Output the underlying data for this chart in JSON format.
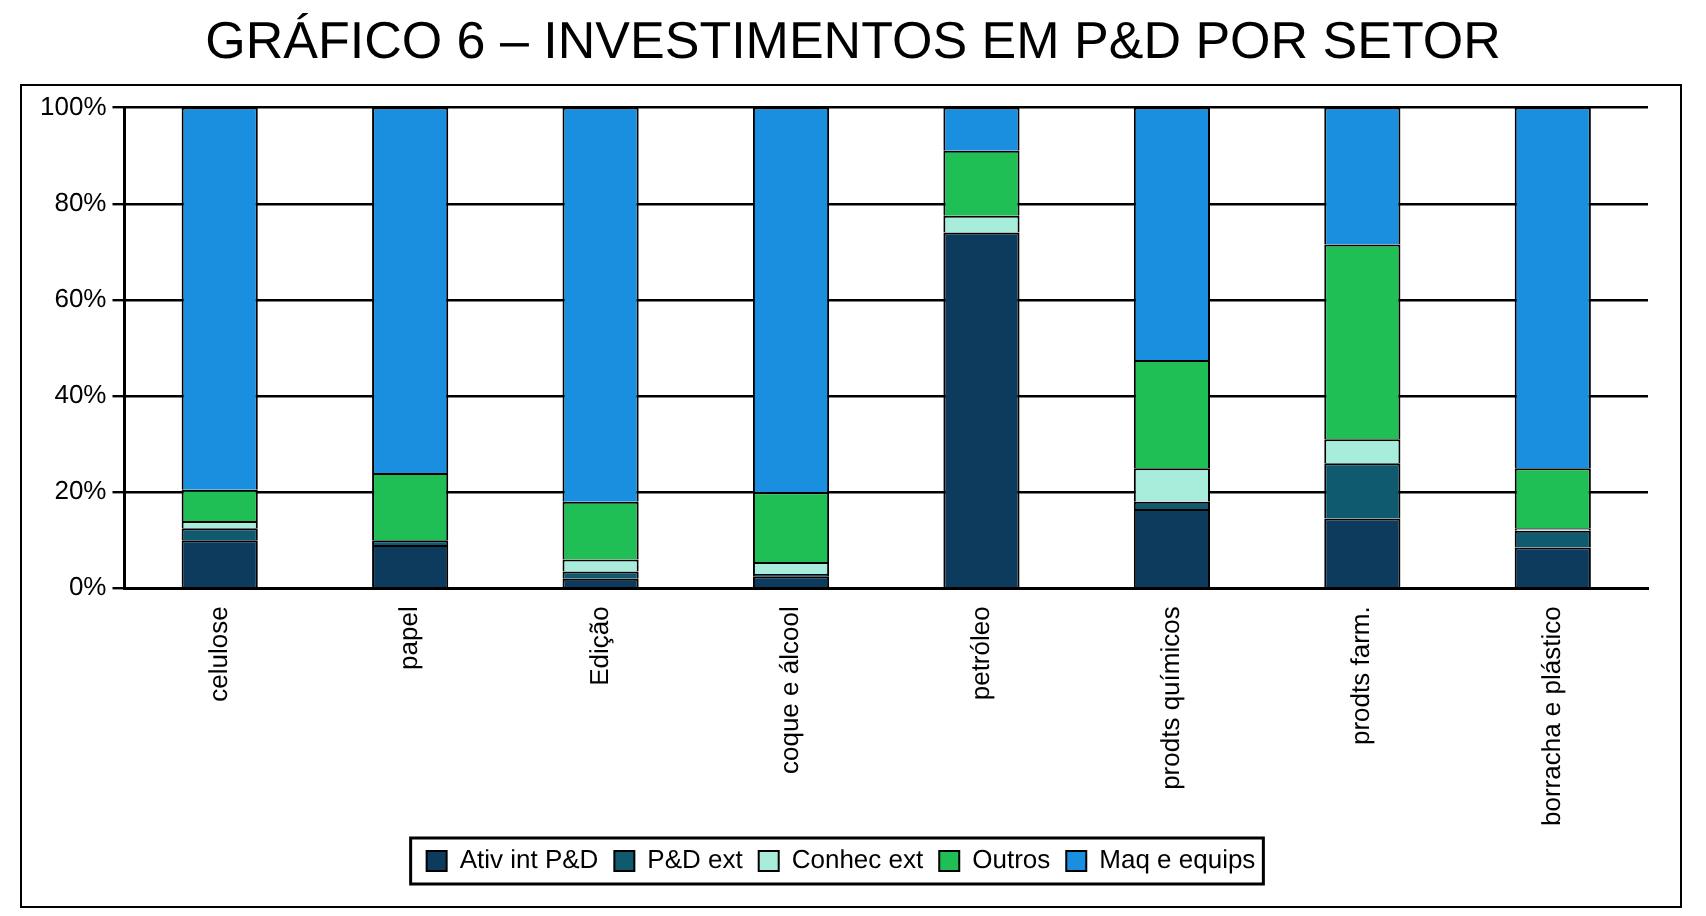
{
  "chart_data": {
    "type": "bar",
    "title": "GRÁFICO 6 – INVESTIMENTOS EM P&D POR SETOR",
    "stacked": true,
    "categories": [
      "celulose",
      "papel",
      "Edição",
      "coque e álcool",
      "petróleo",
      "prodts químicos",
      "prodts farm.",
      "borracha e plástico"
    ],
    "series": [
      {
        "name": "Ativ int P&D",
        "color": "#0d3b5e",
        "values": [
          10,
          9,
          2,
          2.5,
          74,
          16.5,
          14.5,
          8.5
        ]
      },
      {
        "name": "P&D ext",
        "color": "#0f5a6e",
        "values": [
          2.5,
          1,
          1.5,
          0.5,
          0,
          1.5,
          11.5,
          3.5
        ]
      },
      {
        "name": "Conhec ext",
        "color": "#a8ecdc",
        "values": [
          1.5,
          0,
          2.5,
          2.5,
          3.5,
          7,
          5,
          0.5
        ]
      },
      {
        "name": "Outros",
        "color": "#1fbf55",
        "values": [
          6.5,
          14,
          12,
          14.5,
          13.5,
          22.5,
          40.5,
          12.5
        ]
      },
      {
        "name": "Maq e equips",
        "color": "#1a8fe0",
        "values": [
          79.5,
          76,
          82,
          80,
          9,
          52.5,
          28.5,
          75
        ]
      }
    ],
    "ylim": [
      0,
      100
    ],
    "yticks": [
      {
        "value": 0,
        "label": "0%"
      },
      {
        "value": 20,
        "label": "20%"
      },
      {
        "value": 40,
        "label": "40%"
      },
      {
        "value": 60,
        "label": "60%"
      },
      {
        "value": 80,
        "label": "80%"
      },
      {
        "value": 100,
        "label": "100%"
      }
    ],
    "grid": "y",
    "legend": "bottom"
  }
}
